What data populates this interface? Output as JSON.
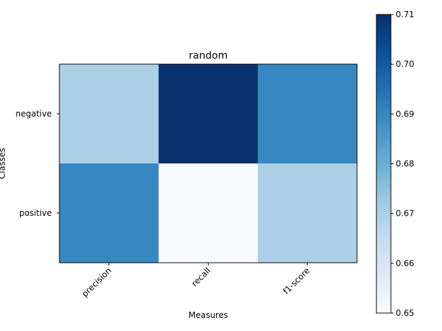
{
  "chart_data": {
    "type": "heatmap",
    "title": "random",
    "xlabel": "Measures",
    "ylabel": "Classes",
    "x_categories": [
      "precision",
      "recall",
      "f1-score"
    ],
    "y_categories": [
      "negative",
      "positive"
    ],
    "values": [
      [
        0.67,
        0.71,
        0.69
      ],
      [
        0.69,
        0.65,
        0.67
      ]
    ],
    "colorbar": {
      "min": 0.65,
      "max": 0.71,
      "ticks": [
        "0.65",
        "0.66",
        "0.67",
        "0.68",
        "0.69",
        "0.70",
        "0.71"
      ],
      "colormap": "Blues"
    },
    "grid": false
  }
}
